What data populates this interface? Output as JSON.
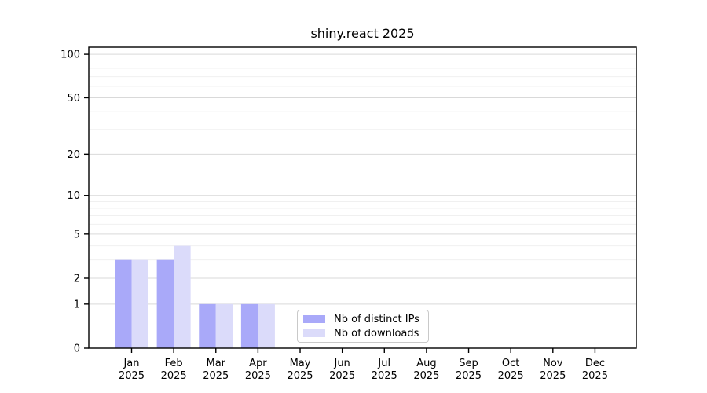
{
  "chart_data": {
    "type": "bar",
    "title": "shiny.react 2025",
    "categories": [
      "Jan",
      "Feb",
      "Mar",
      "Apr",
      "May",
      "Jun",
      "Jul",
      "Aug",
      "Sep",
      "Oct",
      "Nov",
      "Dec"
    ],
    "x_tick_year": "2025",
    "series": [
      {
        "name": "Nb of distinct IPs",
        "color": "#a9a9f9",
        "values": [
          3,
          3,
          1,
          1,
          0,
          0,
          0,
          0,
          0,
          0,
          0,
          0
        ]
      },
      {
        "name": "Nb of downloads",
        "color": "#dbdbfa",
        "values": [
          3,
          4,
          1,
          1,
          0,
          0,
          0,
          0,
          0,
          0,
          0,
          0
        ]
      }
    ],
    "xlabel": "",
    "ylabel": "",
    "y_axis": {
      "scale": "log1p",
      "ylim": [
        0,
        112
      ],
      "major_ticks": [
        0,
        1,
        2,
        5,
        10,
        20,
        50,
        100
      ],
      "minor_gridlines": [
        3,
        4,
        6,
        7,
        8,
        9,
        30,
        40,
        60,
        70,
        80,
        90
      ]
    },
    "grid": {
      "enabled": true,
      "major_color": "#d9d9d9",
      "minor_color": "#f0f0f0"
    },
    "axis_color": "#000000",
    "legend_position": "lower center (inside plot)"
  }
}
